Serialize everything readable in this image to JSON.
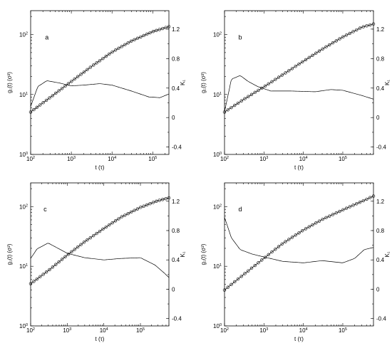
{
  "chart_data": [
    {
      "type": "line",
      "panel_label": "a",
      "xlabel": "t (τ)",
      "ylabel_left": "g₁(t) (σ²)",
      "ylabel_right": "K₁",
      "xscale": "log",
      "xlim": [
        100,
        250000
      ],
      "yscale_left": "log",
      "ylim_left": [
        1,
        250
      ],
      "ylim_right": [
        -0.5,
        1.45
      ],
      "x_ticks": [
        "10",
        "10",
        "10",
        "10"
      ],
      "x_tick_exp": [
        "2",
        "3",
        "4",
        "5"
      ],
      "y_left_ticks": [
        "10",
        "10",
        "10"
      ],
      "y_left_tick_exp": [
        "0",
        "1",
        "2"
      ],
      "y_right_ticks": [
        "-0.4",
        "0",
        "0.4",
        "0.8",
        "1.2"
      ],
      "series": [
        {
          "axis": "left",
          "style": "line-with-open-circles",
          "x": [
            100,
            300,
            1000,
            3000,
            10000,
            30000,
            100000,
            250000
          ],
          "y": [
            5.1,
            8.9,
            16.5,
            28.7,
            51,
            78,
            112,
            136
          ]
        },
        {
          "axis": "right",
          "style": "line",
          "x": [
            100,
            150,
            250,
            500,
            1000,
            2000,
            5000,
            10000,
            30000,
            80000,
            150000,
            250000
          ],
          "y": [
            0.15,
            0.42,
            0.5,
            0.47,
            0.43,
            0.44,
            0.46,
            0.44,
            0.36,
            0.28,
            0.27,
            0.32
          ]
        }
      ]
    },
    {
      "type": "line",
      "panel_label": "b",
      "xlabel": "t (τ)",
      "ylabel_left": "g₁(t) (σ²)",
      "ylabel_right": "K₁",
      "xscale": "log",
      "xlim": [
        100,
        600000
      ],
      "yscale_left": "log",
      "ylim_left": [
        1,
        250
      ],
      "ylim_right": [
        -0.5,
        1.45
      ],
      "x_ticks": [
        "10",
        "10",
        "10",
        "10"
      ],
      "x_tick_exp": [
        "2",
        "3",
        "4",
        "5"
      ],
      "y_left_ticks": [
        "10",
        "10",
        "10"
      ],
      "y_left_tick_exp": [
        "0",
        "1",
        "2"
      ],
      "y_right_ticks": [
        "-0.4",
        "0",
        "0.4",
        "0.8",
        "1.2"
      ],
      "series": [
        {
          "axis": "left",
          "style": "line-with-open-circles",
          "x": [
            100,
            300,
            1000,
            3000,
            10000,
            30000,
            100000,
            300000,
            600000
          ],
          "y": [
            5.1,
            8.2,
            13.4,
            21.4,
            35.8,
            57,
            91,
            132,
            150
          ]
        },
        {
          "axis": "right",
          "style": "line",
          "x": [
            100,
            150,
            250,
            400,
            700,
            1500,
            5000,
            20000,
            50000,
            100000,
            300000,
            600000
          ],
          "y": [
            0.08,
            0.52,
            0.57,
            0.49,
            0.42,
            0.36,
            0.36,
            0.35,
            0.38,
            0.37,
            0.3,
            0.25
          ]
        }
      ]
    },
    {
      "type": "line",
      "panel_label": "c",
      "xlabel": "t (τ)",
      "ylabel_left": "g₁(t) (σ²)",
      "ylabel_right": "K₁",
      "xscale": "log",
      "xlim": [
        100,
        600000
      ],
      "yscale_left": "log",
      "ylim_left": [
        1,
        250
      ],
      "ylim_right": [
        -0.5,
        1.45
      ],
      "x_ticks": [
        "10",
        "10",
        "10",
        "10"
      ],
      "x_tick_exp": [
        "2",
        "3",
        "4",
        "5"
      ],
      "y_left_ticks": [
        "10",
        "10",
        "10"
      ],
      "y_left_tick_exp": [
        "0",
        "1",
        "2"
      ],
      "y_right_ticks": [
        "-0.4",
        "0",
        "0.4",
        "0.8",
        "1.2"
      ],
      "series": [
        {
          "axis": "left",
          "style": "line-with-open-circles",
          "x": [
            100,
            300,
            1000,
            3000,
            10000,
            30000,
            100000,
            300000,
            600000
          ],
          "y": [
            5.1,
            8.4,
            15.4,
            25.8,
            43,
            67,
            97,
            126,
            140
          ]
        },
        {
          "axis": "right",
          "style": "line",
          "x": [
            100,
            150,
            300,
            600,
            1000,
            3000,
            10000,
            30000,
            100000,
            250000,
            450000,
            600000
          ],
          "y": [
            0.42,
            0.55,
            0.63,
            0.55,
            0.49,
            0.43,
            0.4,
            0.42,
            0.43,
            0.33,
            0.22,
            0.16
          ]
        }
      ]
    },
    {
      "type": "line",
      "panel_label": "d",
      "xlabel": "t (τ)",
      "ylabel_left": "g₁(t) (σ²)",
      "ylabel_right": "K₁",
      "xscale": "log",
      "xlim": [
        100,
        600000
      ],
      "yscale_left": "log",
      "ylim_left": [
        1,
        250
      ],
      "ylim_right": [
        -0.5,
        1.45
      ],
      "x_ticks": [
        "10",
        "10",
        "10",
        "10"
      ],
      "x_tick_exp": [
        "2",
        "3",
        "4",
        "5"
      ],
      "y_left_ticks": [
        "10",
        "10",
        "10"
      ],
      "y_left_tick_exp": [
        "0",
        "1",
        "2"
      ],
      "y_right_ticks": [
        "-0.4",
        "0",
        "0.4",
        "0.8",
        "1.2"
      ],
      "series": [
        {
          "axis": "left",
          "style": "line-with-open-circles",
          "x": [
            100,
            300,
            1000,
            3000,
            10000,
            30000,
            100000,
            300000,
            600000
          ],
          "y": [
            4.0,
            7.2,
            13.6,
            24.2,
            40.4,
            61,
            88,
            122,
            150
          ]
        },
        {
          "axis": "right",
          "style": "line",
          "x": [
            100,
            150,
            250,
            500,
            1000,
            3000,
            10000,
            30000,
            100000,
            200000,
            350000,
            600000
          ],
          "y": [
            0.98,
            0.7,
            0.54,
            0.48,
            0.44,
            0.38,
            0.36,
            0.39,
            0.36,
            0.42,
            0.54,
            0.57
          ]
        }
      ]
    }
  ]
}
